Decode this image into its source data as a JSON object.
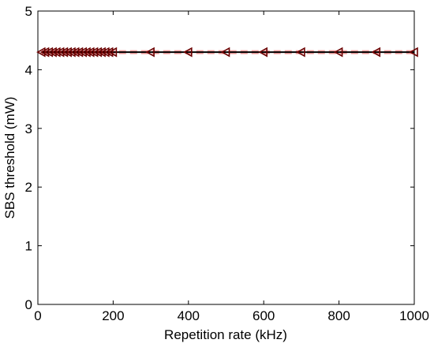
{
  "chart_data": {
    "type": "line",
    "title": "",
    "xlabel": "Repetition rate (kHz)",
    "ylabel": "SBS threshold (mW)",
    "xlim": [
      0,
      1000
    ],
    "ylim": [
      0,
      5
    ],
    "xticks": [
      0,
      200,
      400,
      600,
      800,
      1000
    ],
    "yticks": [
      0,
      1,
      2,
      3,
      4,
      5
    ],
    "grid": false,
    "legend": "none",
    "series": [
      {
        "line_color": "#000000",
        "shadow_color": "#f08080",
        "marker": "left-triangle",
        "marker_color": "#6b0000",
        "x": [
          10,
          20,
          30,
          40,
          50,
          60,
          70,
          80,
          90,
          100,
          110,
          120,
          130,
          140,
          150,
          160,
          170,
          180,
          190,
          200,
          300,
          400,
          500,
          600,
          700,
          800,
          900,
          1000
        ],
        "y": [
          4.3,
          4.3,
          4.3,
          4.3,
          4.3,
          4.3,
          4.3,
          4.3,
          4.3,
          4.3,
          4.3,
          4.3,
          4.3,
          4.3,
          4.3,
          4.3,
          4.3,
          4.3,
          4.3,
          4.3,
          4.3,
          4.3,
          4.3,
          4.3,
          4.3,
          4.3,
          4.3,
          4.3
        ]
      }
    ]
  }
}
